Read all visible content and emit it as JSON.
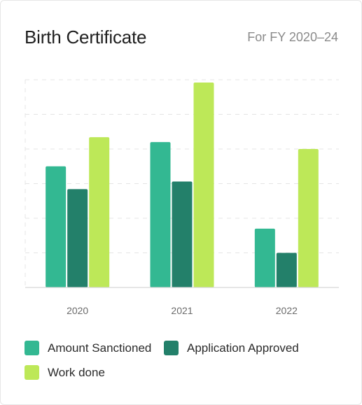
{
  "header": {
    "title": "Birth Certificate",
    "subtitle": "For FY 2020–24"
  },
  "chart_data": {
    "type": "bar",
    "categories": [
      "2020",
      "2021",
      "2022"
    ],
    "series": [
      {
        "name": "Amount Sanctioned",
        "color": "#33b892",
        "values": [
          175,
          210,
          85
        ]
      },
      {
        "name": "Application Approved",
        "color": "#23806a",
        "values": [
          142,
          153,
          50
        ]
      },
      {
        "name": "Work done",
        "color": "#bde858",
        "values": [
          217,
          296,
          200
        ]
      }
    ],
    "ylim": [
      0,
      300
    ],
    "grid": true,
    "legend_position": "bottom"
  }
}
